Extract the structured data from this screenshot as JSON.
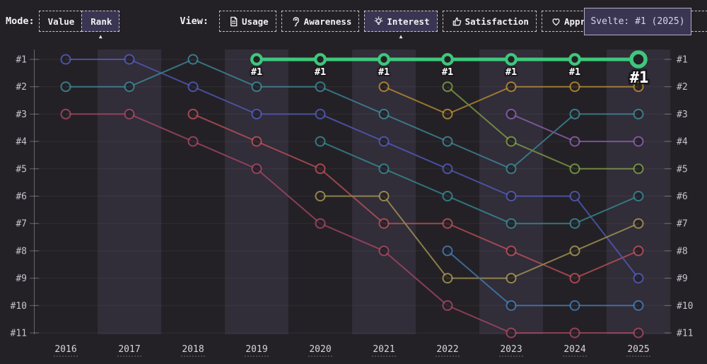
{
  "toolbar": {
    "mode": {
      "label": "Mode:",
      "options": [
        {
          "label": "Value",
          "selected": false
        },
        {
          "label": "Rank",
          "selected": true
        }
      ]
    },
    "view": {
      "label": "View:",
      "options": [
        {
          "label": "Usage",
          "icon": "document-icon",
          "selected": false
        },
        {
          "label": "Awareness",
          "icon": "ear-icon",
          "selected": false
        },
        {
          "label": "Interest",
          "icon": "lightbulb-icon",
          "selected": true
        },
        {
          "label": "Satisfaction",
          "icon": "thumbs-up-icon",
          "selected": false
        },
        {
          "label": "Appreciation",
          "icon": "heart-icon",
          "selected": false
        }
      ]
    }
  },
  "tooltip": {
    "text": "Svelte: #1 (2025)"
  },
  "colors": {
    "background": "#242126",
    "band": "rgba(138,128,186,0.13)",
    "gridline": "rgba(255,255,255,0.06)",
    "axis": "rgba(255,255,255,0.30)",
    "rank_label": "#c6c2cc",
    "year_label": "#d8d4dc",
    "selected_bg": "#3a3552",
    "tooltip_bg": "#3a3551",
    "highlight_green": "#3ec87c",
    "point_label_fill": "#ffffff",
    "point_label_outline": "#1a181c"
  },
  "chart_data": {
    "type": "line",
    "subtype": "bump-rank",
    "title": "",
    "xlabel": "",
    "ylabel": "",
    "x": [
      2016,
      2017,
      2018,
      2019,
      2020,
      2021,
      2022,
      2023,
      2024,
      2025
    ],
    "ranks": [
      1,
      2,
      3,
      4,
      5,
      6,
      7,
      8,
      9,
      10,
      11
    ],
    "axis_left_labels": [
      "#1",
      "#2",
      "#3",
      "#4",
      "#5",
      "#6",
      "#7",
      "#8",
      "#9",
      "#10",
      "#11"
    ],
    "axis_right_labels": [
      "#1",
      "#2",
      "#3",
      "#4",
      "#5",
      "#6",
      "#7",
      "#8",
      "#9",
      "#10",
      "#11"
    ],
    "band_years": [
      2017,
      2019,
      2021,
      2023,
      2025
    ],
    "grid": true,
    "legend": "none",
    "highlight_series": "Svelte",
    "highlight_point_label": "#1",
    "series": [
      {
        "name": "series-darkred",
        "color": "#b14a68",
        "points": [
          [
            2016,
            3
          ],
          [
            2017,
            3
          ],
          [
            2018,
            4
          ],
          [
            2019,
            5
          ],
          [
            2020,
            7
          ],
          [
            2021,
            8
          ],
          [
            2022,
            10
          ],
          [
            2023,
            11
          ],
          [
            2024,
            11
          ],
          [
            2025,
            11
          ]
        ]
      },
      {
        "name": "series-red",
        "color": "#c9545e",
        "points": [
          [
            2018,
            3
          ],
          [
            2019,
            4
          ],
          [
            2020,
            5
          ],
          [
            2021,
            7
          ],
          [
            2022,
            7
          ],
          [
            2023,
            8
          ],
          [
            2024,
            9
          ],
          [
            2025,
            8
          ]
        ]
      },
      {
        "name": "series-blue",
        "color": "#5560c8",
        "points": [
          [
            2016,
            1
          ],
          [
            2017,
            1
          ],
          [
            2018,
            2
          ],
          [
            2019,
            3
          ],
          [
            2020,
            3
          ],
          [
            2021,
            4
          ],
          [
            2022,
            5
          ],
          [
            2023,
            6
          ],
          [
            2024,
            6
          ],
          [
            2025,
            9
          ]
        ]
      },
      {
        "name": "series-teal",
        "color": "#3e93a3",
        "points": [
          [
            2016,
            2
          ],
          [
            2017,
            2
          ],
          [
            2018,
            1
          ],
          [
            2019,
            2
          ],
          [
            2020,
            2
          ],
          [
            2021,
            3
          ],
          [
            2022,
            4
          ],
          [
            2023,
            5
          ],
          [
            2024,
            3
          ],
          [
            2025,
            3
          ]
        ]
      },
      {
        "name": "series-teal2",
        "color": "#37949c",
        "points": [
          [
            2020,
            4
          ],
          [
            2021,
            5
          ],
          [
            2022,
            6
          ],
          [
            2023,
            7
          ],
          [
            2024,
            7
          ],
          [
            2025,
            6
          ]
        ]
      },
      {
        "name": "series-olive",
        "color": "#b2a256",
        "points": [
          [
            2020,
            6
          ],
          [
            2021,
            6
          ],
          [
            2022,
            9
          ],
          [
            2023,
            9
          ],
          [
            2024,
            8
          ],
          [
            2025,
            7
          ]
        ]
      },
      {
        "name": "series-brown",
        "color": "#c79732",
        "points": [
          [
            2021,
            2
          ],
          [
            2022,
            3
          ],
          [
            2023,
            2
          ],
          [
            2024,
            2
          ],
          [
            2025,
            2
          ]
        ]
      },
      {
        "name": "series-olivegreen",
        "color": "#85aa48",
        "points": [
          [
            2022,
            2
          ],
          [
            2023,
            4
          ],
          [
            2024,
            5
          ],
          [
            2025,
            5
          ]
        ]
      },
      {
        "name": "series-lightblue",
        "color": "#4586c2",
        "points": [
          [
            2022,
            8
          ],
          [
            2023,
            10
          ],
          [
            2024,
            10
          ],
          [
            2025,
            10
          ]
        ]
      },
      {
        "name": "series-purple",
        "color": "#9565bb",
        "points": [
          [
            2023,
            3
          ],
          [
            2024,
            4
          ],
          [
            2025,
            4
          ]
        ]
      },
      {
        "name": "Svelte",
        "color": "#3ec87c",
        "points": [
          [
            2019,
            1
          ],
          [
            2020,
            1
          ],
          [
            2021,
            1
          ],
          [
            2022,
            1
          ],
          [
            2023,
            1
          ],
          [
            2024,
            1
          ],
          [
            2025,
            1
          ]
        ]
      }
    ]
  }
}
